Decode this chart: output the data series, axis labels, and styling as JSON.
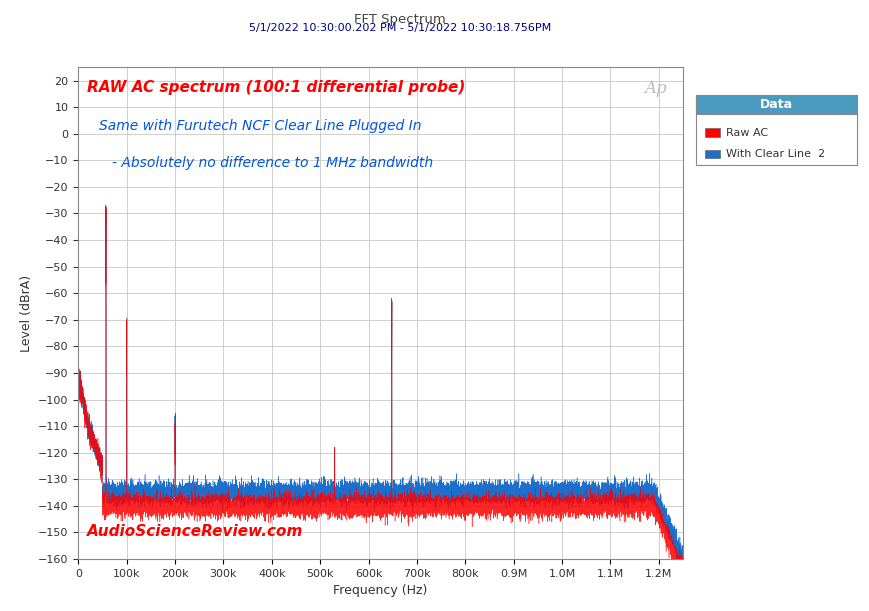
{
  "title_line1": "FFT Spectrum",
  "title_line2": "5/1/2022 10:30:00.202 PM - 5/1/2022 10:30:18.756PM",
  "xlabel": "Frequency (Hz)",
  "ylabel": "Level (dBrA)",
  "xlim": [
    0,
    1250000
  ],
  "ylim": [
    -160,
    25
  ],
  "yticks": [
    20,
    10,
    0,
    -10,
    -20,
    -30,
    -40,
    -50,
    -60,
    -70,
    -80,
    -90,
    -100,
    -110,
    -120,
    -130,
    -140,
    -150,
    -160
  ],
  "xtick_labels": [
    "0",
    "100k",
    "200k",
    "300k",
    "400k",
    "500k",
    "600k",
    "700k",
    "800k",
    "0.9M",
    "1.0M",
    "1.1M",
    "1.2M"
  ],
  "xtick_positions": [
    0,
    100000,
    200000,
    300000,
    400000,
    500000,
    600000,
    700000,
    800000,
    900000,
    1000000,
    1100000,
    1200000
  ],
  "bg_color": "#ffffff",
  "plot_bg_color": "#ffffff",
  "grid_color": "#c8c8c8",
  "title1_color": "#444444",
  "title2_color": "#000080",
  "annotation1": "RAW AC spectrum (100:1 differential probe)",
  "annotation2": "Same with Furutech NCF Clear Line Plugged In",
  "annotation3": "- Absolutely no difference to 1 MHz bandwidth",
  "watermark": "AudioScienceReview.com",
  "legend_title": "Data",
  "legend_items": [
    "Raw AC",
    "With Clear Line  2"
  ],
  "legend_colors": [
    "#ff0000",
    "#1e6fcc"
  ],
  "legend_header_bg": "#4a9bbf",
  "line_color_red": "#ff0000",
  "line_color_blue": "#1e6fcc",
  "noise_floor_red": -140,
  "noise_floor_blue": -135,
  "ap_logo": "Ap"
}
